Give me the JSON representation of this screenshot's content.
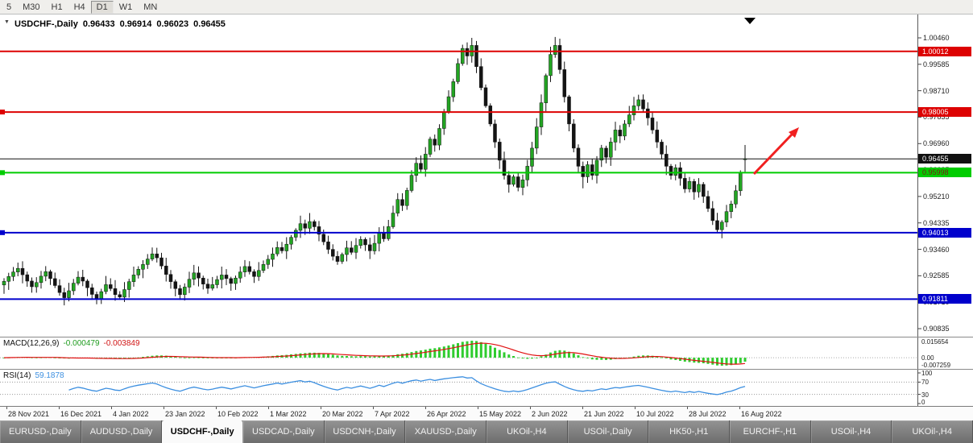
{
  "toolbar": {
    "timeframes": [
      {
        "label": "5",
        "active": false
      },
      {
        "label": "M30",
        "active": false
      },
      {
        "label": "H1",
        "active": false
      },
      {
        "label": "H4",
        "active": false
      },
      {
        "label": "D1",
        "active": true
      },
      {
        "label": "W1",
        "active": false
      },
      {
        "label": "MN",
        "active": false
      }
    ]
  },
  "chart": {
    "title": {
      "symbol": "USDCHF-,Daily",
      "open": "0.96433",
      "high": "0.96914",
      "low": "0.96023",
      "close": "0.96455"
    }
  },
  "price_axis": {
    "ticks": [
      "1.00460",
      "0.99585",
      "0.98710",
      "0.97835",
      "0.96960",
      "0.96085",
      "0.95210",
      "0.94335",
      "0.93460",
      "0.92585",
      "0.91710",
      "0.90835"
    ],
    "current_price_label": {
      "text": "0.96455",
      "bg": "#111111",
      "fg": "#ffffff"
    }
  },
  "chart_data": {
    "type": "candlestick",
    "symbol": "USDCHF",
    "timeframe": "Daily",
    "title": "USDCHF-,Daily",
    "current_ohlc": {
      "open": 0.96433,
      "high": 0.96914,
      "low": 0.96023,
      "close": 0.96455
    },
    "first_open": 0.9228,
    "closes": [
      0.924,
      0.9256,
      0.9271,
      0.9283,
      0.9262,
      0.9241,
      0.9222,
      0.9236,
      0.9257,
      0.9272,
      0.9249,
      0.9226,
      0.9203,
      0.9186,
      0.9209,
      0.9234,
      0.9254,
      0.9241,
      0.9219,
      0.9197,
      0.9183,
      0.9206,
      0.9229,
      0.9216,
      0.9196,
      0.9188,
      0.9213,
      0.9239,
      0.9261,
      0.928,
      0.9296,
      0.9314,
      0.9331,
      0.9318,
      0.9291,
      0.9263,
      0.9239,
      0.9216,
      0.9196,
      0.9221,
      0.9247,
      0.9268,
      0.9251,
      0.9231,
      0.9217,
      0.9229,
      0.9246,
      0.9261,
      0.9249,
      0.9233,
      0.9251,
      0.9271,
      0.9289,
      0.9272,
      0.9256,
      0.9276,
      0.9296,
      0.9313,
      0.9331,
      0.9352,
      0.9341,
      0.9363,
      0.9386,
      0.9409,
      0.9431,
      0.9416,
      0.9438,
      0.9421,
      0.9396,
      0.9371,
      0.9346,
      0.9323,
      0.9306,
      0.9329,
      0.9351,
      0.9336,
      0.9359,
      0.9379,
      0.9361,
      0.9341,
      0.9366,
      0.9402,
      0.9381,
      0.9421,
      0.9466,
      0.9511,
      0.9491,
      0.9541,
      0.9591,
      0.9631,
      0.9611,
      0.9661,
      0.9711,
      0.9691,
      0.9746,
      0.9801,
      0.9851,
      0.9901,
      0.9961,
      1.0011,
      0.9986,
      1.0021,
      0.9951,
      0.9881,
      0.9821,
      0.9761,
      0.9701,
      0.9641,
      0.9591,
      0.9561,
      0.9586,
      0.9551,
      0.9576,
      0.9621,
      0.9681,
      0.9751,
      0.9831,
      0.9921,
      0.9991,
      1.0021,
      0.9941,
      0.9851,
      0.9761,
      0.9681,
      0.9621,
      0.9586,
      0.9626,
      0.9591,
      0.9641,
      0.9681,
      0.9651,
      0.9701,
      0.9741,
      0.9721,
      0.9761,
      0.9791,
      0.9821,
      0.9841,
      0.9811,
      0.9781,
      0.9741,
      0.9701,
      0.9661,
      0.9621,
      0.9591,
      0.9616,
      0.9581,
      0.9546,
      0.9571,
      0.9536,
      0.9561,
      0.9521,
      0.9481,
      0.9441,
      0.9411,
      0.9436,
      0.9471,
      0.9496,
      0.954,
      0.96,
      0.96455
    ],
    "special_highs": {
      "101": 1.0046,
      "119": 1.0049
    },
    "special_lows": {
      "111": 0.9538,
      "125": 0.9548,
      "154": 0.9402
    },
    "x_labels": [
      "28 Nov 2021",
      "16 Dec 2021",
      "4 Jan 2022",
      "23 Jan 2022",
      "10 Feb 2022",
      "1 Mar 2022",
      "20 Mar 2022",
      "7 Apr 2022",
      "26 Apr 2022",
      "15 May 2022",
      "2 Jun 2022",
      "21 Jun 2022",
      "10 Jul 2022",
      "28 Jul 2022",
      "16 Aug 2022"
    ],
    "price_lines": [
      {
        "price": 1.00012,
        "label": "1.00012",
        "color": "#dd0202",
        "text_color": "#ffffff",
        "left_marker": false,
        "role": "resistance"
      },
      {
        "price": 0.98005,
        "label": "0.98005",
        "color": "#dd0202",
        "text_color": "#ffffff",
        "left_marker": true,
        "role": "resistance"
      },
      {
        "price": 0.95998,
        "label": "0.95998",
        "color": "#00cc00",
        "text_color": "#7d1616",
        "left_marker": true,
        "role": "support"
      },
      {
        "price": 0.94013,
        "label": "0.94013",
        "color": "#0000cc",
        "text_color": "#ffffff",
        "left_marker": true,
        "role": "support"
      },
      {
        "price": 0.91811,
        "label": "0.91811",
        "color": "#0000cc",
        "text_color": "#ffffff",
        "left_marker": false,
        "role": "support"
      }
    ],
    "current_price": 0.96455,
    "annotations": {
      "arrow": {
        "color": "#f02020",
        "direction": "up-right"
      },
      "top_marker": "▼"
    },
    "indicators": {
      "macd": {
        "name": "MACD(12,26,9)",
        "fast": 12,
        "slow": 26,
        "signal": 9,
        "value_main": "-0.000479",
        "value_signal": "-0.003849",
        "axis_labels": [
          "0.015654",
          "0.00",
          "-0.007259"
        ],
        "colors": {
          "histogram": "#2fcc2f",
          "signal": "#e01010"
        }
      },
      "rsi": {
        "name": "RSI(14)",
        "period": 14,
        "value": "59.1878",
        "levels": [
          70,
          30
        ],
        "axis_labels": [
          "100",
          "70",
          "30",
          "0"
        ],
        "color": "#3c8fe0"
      }
    }
  },
  "tabs": [
    {
      "label": "EURUSD-,Daily",
      "active": false
    },
    {
      "label": "AUDUSD-,Daily",
      "active": false
    },
    {
      "label": "USDCHF-,Daily",
      "active": true
    },
    {
      "label": "USDCAD-,Daily",
      "active": false
    },
    {
      "label": "USDCNH-,Daily",
      "active": false
    },
    {
      "label": "XAUUSD-,Daily",
      "active": false
    },
    {
      "label": "UKOil-,H4",
      "active": false
    },
    {
      "label": "USOil-,Daily",
      "active": false
    },
    {
      "label": "HK50-,H1",
      "active": false
    },
    {
      "label": "EURCHF-,H1",
      "active": false
    },
    {
      "label": "USOil-,H4",
      "active": false
    },
    {
      "label": "UKOil-,H4",
      "active": false
    }
  ]
}
